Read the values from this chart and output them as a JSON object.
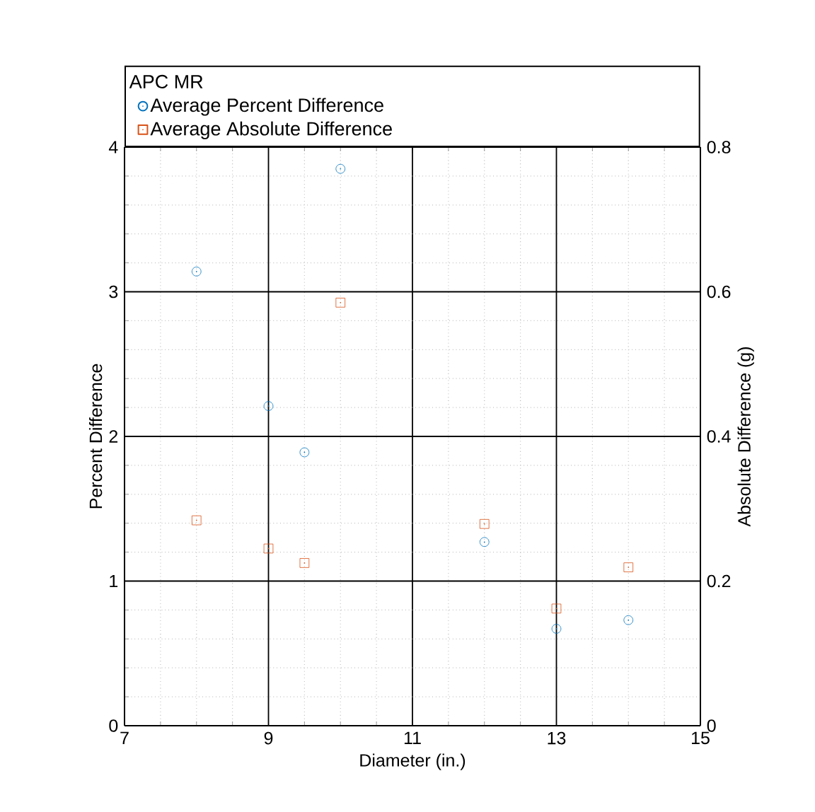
{
  "chart_data": {
    "type": "scatter",
    "legend_title": "APC MR",
    "xlabel": "Diameter (in.)",
    "ylabel": "Percent Difference",
    "y2label": "Absolute Difference (g)",
    "x": [
      8,
      9,
      9.5,
      10,
      12,
      13,
      14
    ],
    "series": [
      {
        "name": "Average Percent Difference",
        "color": "#0072bd",
        "marker": "circle",
        "values": [
          3.14,
          2.21,
          1.89,
          3.85,
          1.27,
          0.67,
          0.73
        ]
      },
      {
        "name": "Average Absolute Difference",
        "color": "#d95319",
        "marker": "square",
        "axis": "y2",
        "values": [
          0.284,
          0.245,
          0.225,
          0.585,
          0.279,
          0.162,
          0.219
        ]
      }
    ],
    "xlim": [
      7,
      15
    ],
    "xticks": [
      7,
      9,
      11,
      13,
      15
    ],
    "ylim": [
      0,
      4
    ],
    "yticks": [
      0,
      1,
      2,
      3,
      4
    ],
    "y2lim": [
      0,
      0.8
    ],
    "y2ticks": [
      0,
      0.2,
      0.4,
      0.6,
      0.8
    ],
    "grid": true,
    "legend": "top"
  }
}
